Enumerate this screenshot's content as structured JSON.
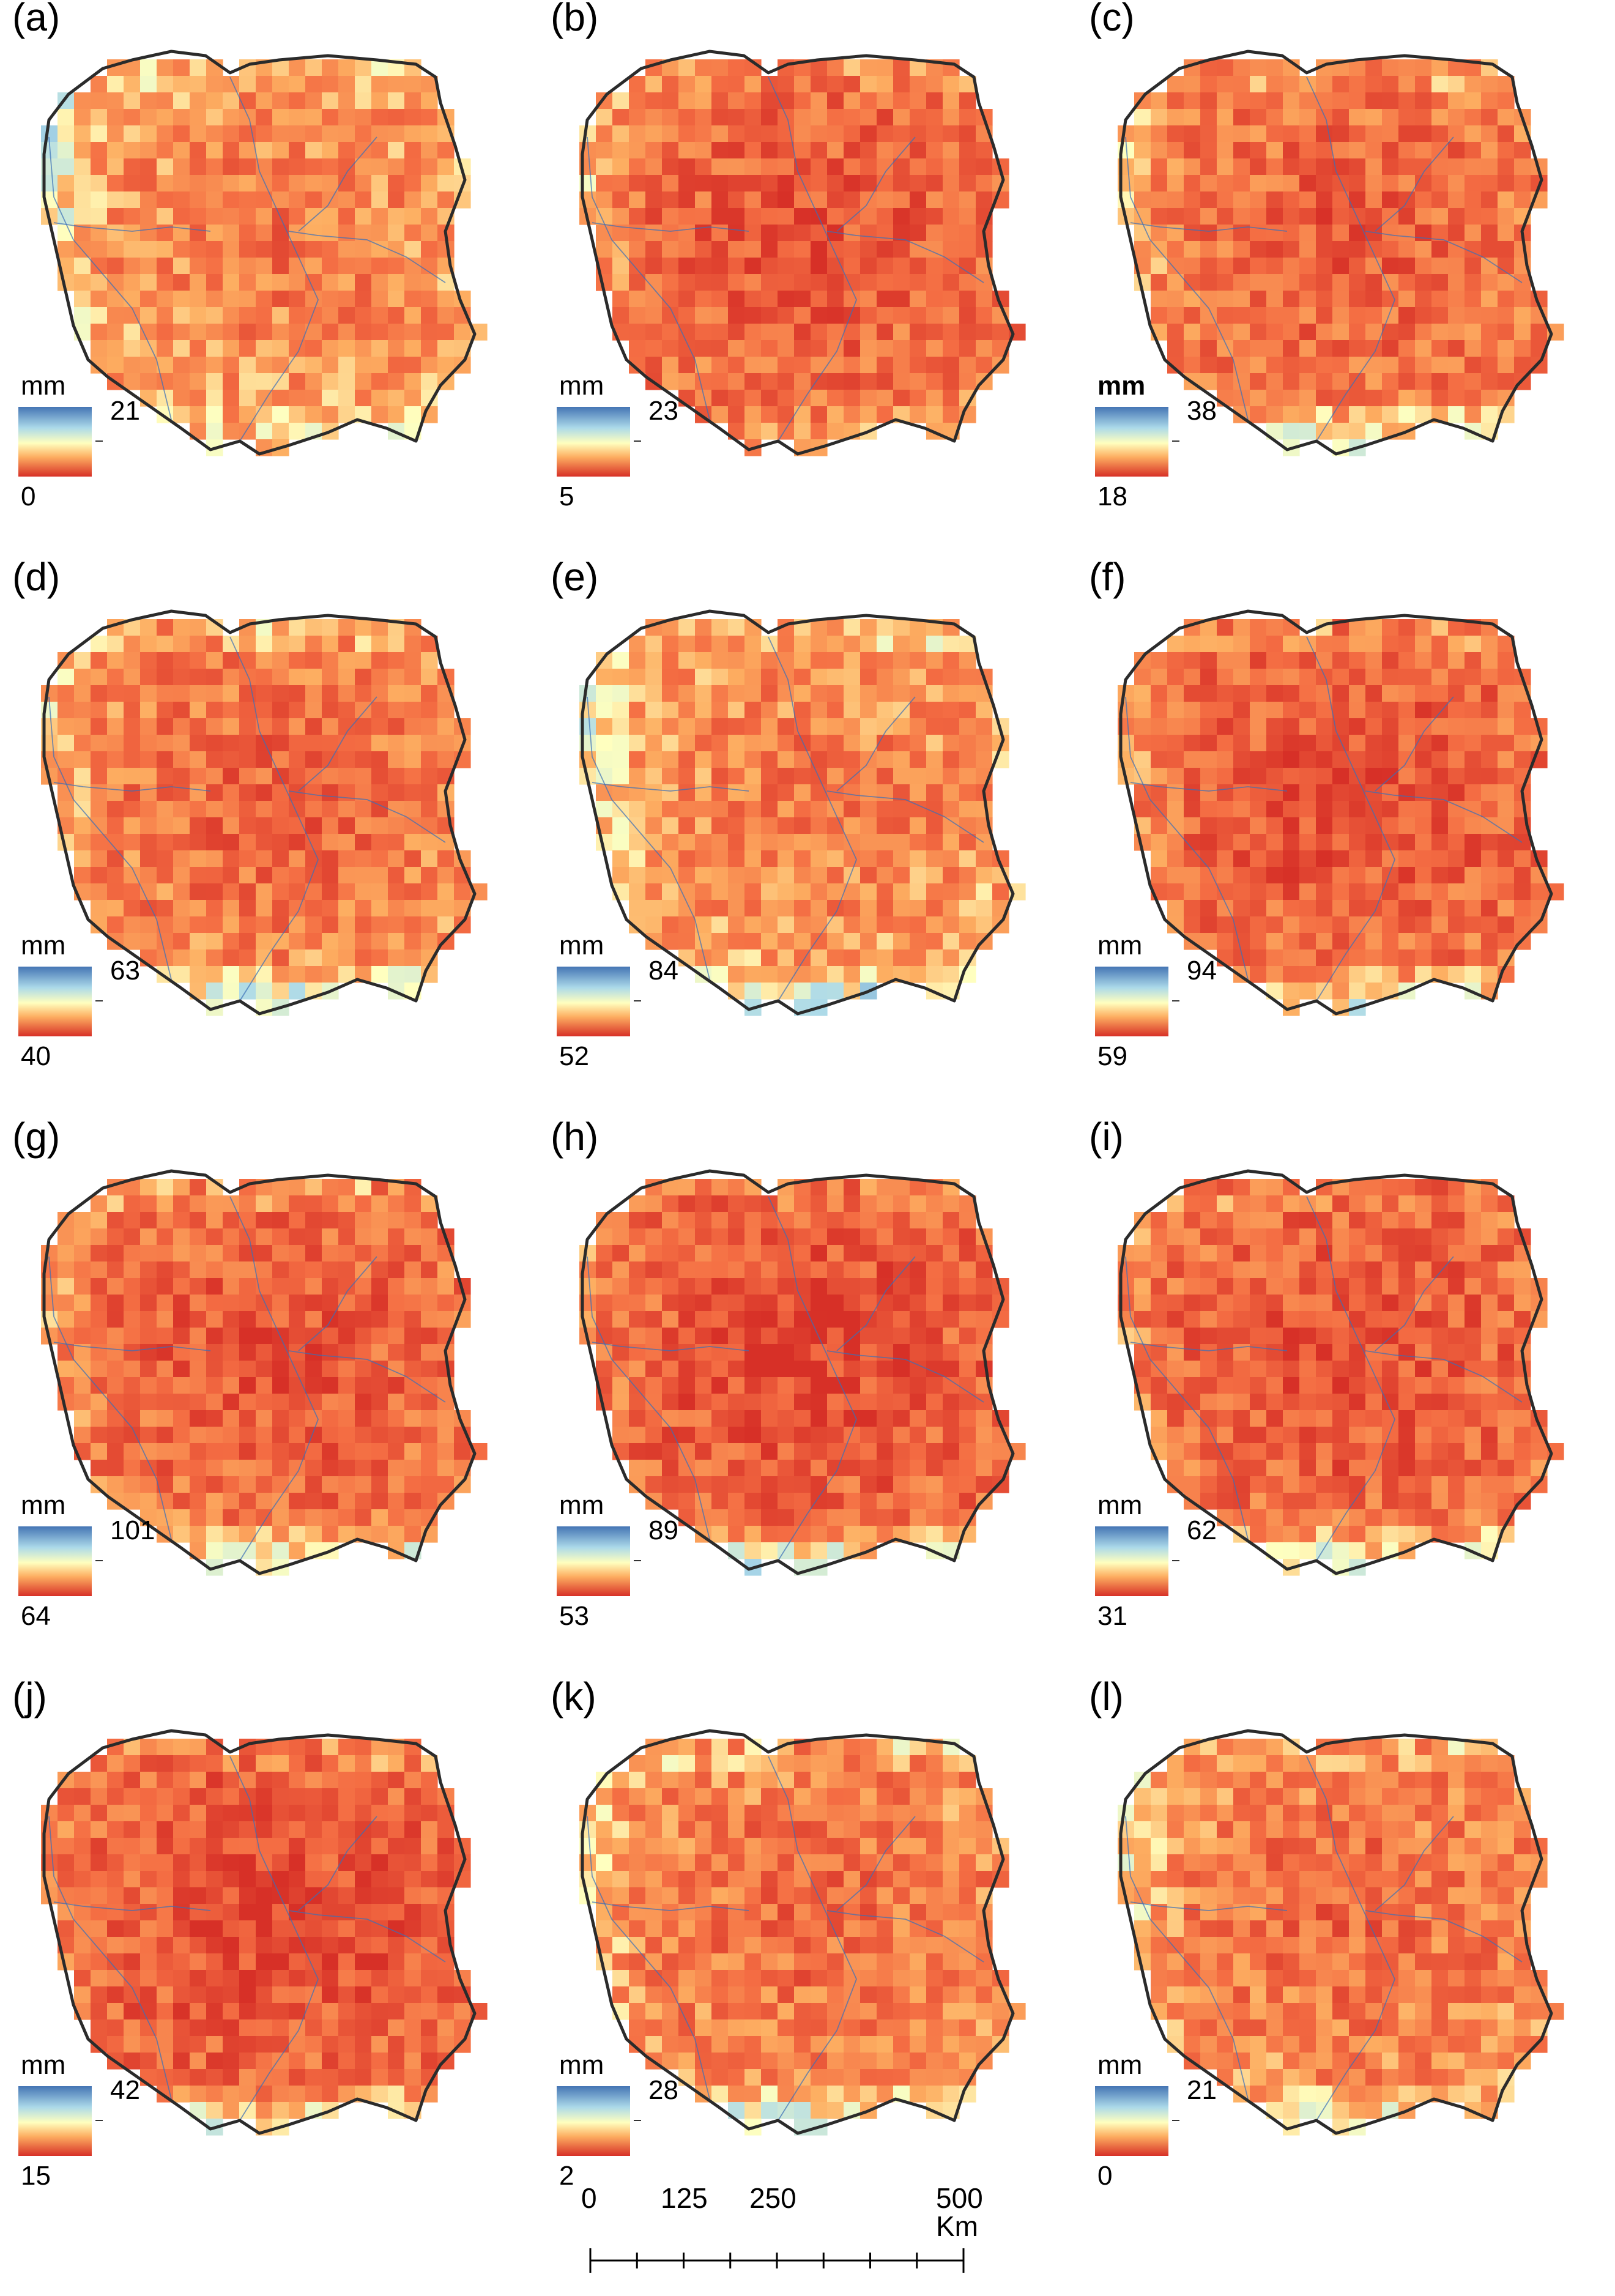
{
  "figure": {
    "panels": [
      {
        "letter": "(a)",
        "unit": "mm",
        "unit_bold": false,
        "max": "21",
        "min": "0",
        "seed": 11,
        "bias": -0.05,
        "coast_blue": 0.55,
        "south_blue": 0.2
      },
      {
        "letter": "(b)",
        "unit": "mm",
        "unit_bold": false,
        "max": "23",
        "min": "5",
        "seed": 23,
        "bias": -0.18,
        "coast_blue": 0.5,
        "south_blue": 0.25
      },
      {
        "letter": "(c)",
        "unit": "mm",
        "unit_bold": true,
        "max": "38",
        "min": "18",
        "seed": 37,
        "bias": -0.15,
        "coast_blue": 0.35,
        "south_blue": 0.75
      },
      {
        "letter": "(d)",
        "unit": "mm",
        "unit_bold": false,
        "max": "63",
        "min": "40",
        "seed": 41,
        "bias": -0.12,
        "coast_blue": 0.3,
        "south_blue": 0.85
      },
      {
        "letter": "(e)",
        "unit": "mm",
        "unit_bold": false,
        "max": "84",
        "min": "52",
        "seed": 53,
        "bias": -0.05,
        "coast_blue": 0.45,
        "south_blue": 0.75
      },
      {
        "letter": "(f)",
        "unit": "mm",
        "unit_bold": false,
        "max": "94",
        "min": "59",
        "seed": 61,
        "bias": -0.2,
        "coast_blue": 0.3,
        "south_blue": 0.7
      },
      {
        "letter": "(g)",
        "unit": "mm",
        "unit_bold": false,
        "max": "101",
        "min": "64",
        "seed": 71,
        "bias": -0.18,
        "coast_blue": 0.25,
        "south_blue": 0.8
      },
      {
        "letter": "(h)",
        "unit": "mm",
        "unit_bold": false,
        "max": "89",
        "min": "53",
        "seed": 83,
        "bias": -0.22,
        "coast_blue": 0.2,
        "south_blue": 0.9
      },
      {
        "letter": "(i)",
        "unit": "mm",
        "unit_bold": false,
        "max": "62",
        "min": "31",
        "seed": 97,
        "bias": -0.2,
        "coast_blue": 0.2,
        "south_blue": 0.85
      },
      {
        "letter": "(j)",
        "unit": "mm",
        "unit_bold": false,
        "max": "42",
        "min": "15",
        "seed": 101,
        "bias": -0.22,
        "coast_blue": 0.2,
        "south_blue": 0.75
      },
      {
        "letter": "(k)",
        "unit": "mm",
        "unit_bold": false,
        "max": "28",
        "min": "2",
        "seed": 113,
        "bias": -0.1,
        "coast_blue": 0.35,
        "south_blue": 0.7
      },
      {
        "letter": "(l)",
        "unit": "mm",
        "unit_bold": false,
        "max": "21",
        "min": "0",
        "seed": 127,
        "bias": -0.1,
        "coast_blue": 0.4,
        "south_blue": 0.45
      }
    ],
    "scale_bar": {
      "labels": [
        "0",
        "125",
        "250",
        "500 Km"
      ]
    },
    "colors": {
      "low": "#d73027",
      "mid": "#ffffbf",
      "high": "#4575b4",
      "border": "#2b2b2b",
      "river": "#3a6fb8"
    }
  }
}
